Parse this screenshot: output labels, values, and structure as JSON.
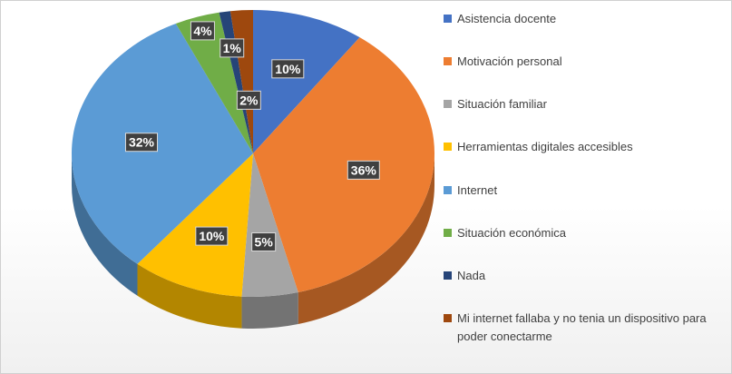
{
  "chart_data": {
    "type": "pie",
    "title": "",
    "categories": [
      "Asistencia docente",
      "Motivación personal",
      "Situación familiar",
      "Herramientas digitales accesibles",
      "Internet",
      "Situación económica",
      "Nada",
      "Mi internet fallaba y no tenia un dispositivo para poder conectarme"
    ],
    "values": [
      10,
      36,
      5,
      10,
      32,
      4,
      1,
      2
    ],
    "data_labels": [
      "10%",
      "36%",
      "5%",
      "10%",
      "32%",
      "4%",
      "1%",
      "2%"
    ],
    "colors": [
      "#4472c4",
      "#ed7d31",
      "#a5a5a5",
      "#ffc000",
      "#5b9bd5",
      "#70ad47",
      "#264478",
      "#9e480e"
    ],
    "legend_position": "right",
    "style": "3d"
  }
}
